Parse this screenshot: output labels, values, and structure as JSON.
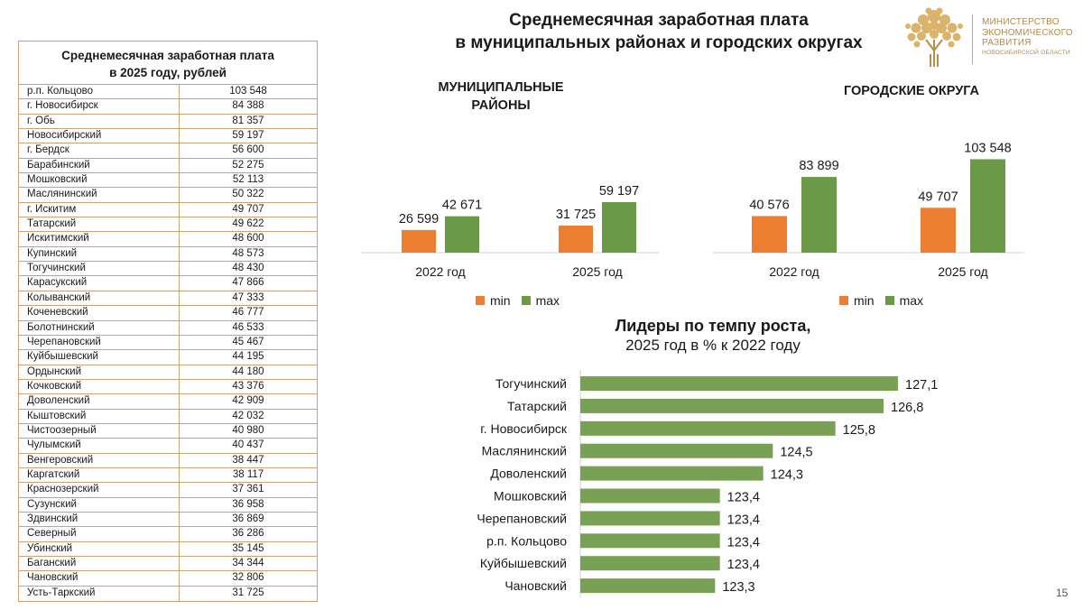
{
  "header": {
    "title_line1": "Среднемесячная заработная плата",
    "title_line2": "в муниципальных районах и городских округах"
  },
  "logo": {
    "line1": "МИНИСТЕРСТВО",
    "line2": "ЭКОНОМИЧЕСКОГО",
    "line3": "РАЗВИТИЯ",
    "line4": "НОВОСИБИРСКОЙ ОБЛАСТИ"
  },
  "table": {
    "title_line1": "Среднемесячная заработная плата",
    "title_line2": "в 2025 году, рублей",
    "rows": [
      {
        "name": "р.п. Кольцово",
        "value": "103 548"
      },
      {
        "name": "г. Новосибирск",
        "value": "84 388"
      },
      {
        "name": "г. Обь",
        "value": "81 357"
      },
      {
        "name": "Новосибирский",
        "value": "59 197"
      },
      {
        "name": "г. Бердск",
        "value": "56 600"
      },
      {
        "name": "Барабинский",
        "value": "52 275"
      },
      {
        "name": "Мошковский",
        "value": "52 113"
      },
      {
        "name": "Маслянинский",
        "value": "50 322"
      },
      {
        "name": "г. Искитим",
        "value": "49 707"
      },
      {
        "name": "Татарский",
        "value": "49 622"
      },
      {
        "name": "Искитимский",
        "value": "48 600"
      },
      {
        "name": "Купинский",
        "value": "48 573"
      },
      {
        "name": "Тогучинский",
        "value": "48 430"
      },
      {
        "name": "Карасукский",
        "value": "47 866"
      },
      {
        "name": "Колыванский",
        "value": "47 333"
      },
      {
        "name": "Коченевский",
        "value": "46 777"
      },
      {
        "name": "Болотнинский",
        "value": "46 533"
      },
      {
        "name": "Черепановский",
        "value": "45 467"
      },
      {
        "name": "Куйбышевский",
        "value": "44 195"
      },
      {
        "name": "Ордынский",
        "value": "44 180"
      },
      {
        "name": "Кочковский",
        "value": "43 376"
      },
      {
        "name": "Доволенский",
        "value": "42 909"
      },
      {
        "name": "Кыштовский",
        "value": "42 032"
      },
      {
        "name": "Чистоозерный",
        "value": "40 980"
      },
      {
        "name": "Чулымский",
        "value": "40 437"
      },
      {
        "name": "Венгеровский",
        "value": "38 447"
      },
      {
        "name": "Каргатский",
        "value": "38 117"
      },
      {
        "name": "Краснозерский",
        "value": "37 361"
      },
      {
        "name": "Сузунский",
        "value": "36 958"
      },
      {
        "name": "Здвинский",
        "value": "36 869"
      },
      {
        "name": "Северный",
        "value": "36 286"
      },
      {
        "name": "Убинский",
        "value": "35 145"
      },
      {
        "name": "Баганский",
        "value": "34 344"
      },
      {
        "name": "Чановский",
        "value": "32 806"
      },
      {
        "name": "Усть-Таркский",
        "value": "31 725"
      }
    ]
  },
  "sections": {
    "districts_line1": "МУНИЦИПАЛЬНЫЕ",
    "districts_line2": "РАЙОНЫ",
    "cities": "ГОРОДСКИЕ ОКРУГА"
  },
  "legend": {
    "min": "min",
    "max": "max"
  },
  "colors": {
    "min": "#ed7d31",
    "max": "#6a9a45",
    "growth": "#79a155",
    "border": "#c9a27a"
  },
  "growth": {
    "title_line1": "Лидеры по темпу роста,",
    "title_line2": "2025 год в % к 2022 году"
  },
  "page_number": "15",
  "chart_data": [
    {
      "type": "bar",
      "title": "МУНИЦИПАЛЬНЫЕ РАЙОНЫ",
      "categories": [
        "2022 год",
        "2025 год"
      ],
      "series": [
        {
          "name": "min",
          "values": [
            26599,
            31725
          ],
          "labels": [
            "26 599",
            "31 725"
          ]
        },
        {
          "name": "max",
          "values": [
            42671,
            59197
          ],
          "labels": [
            "42 671",
            "59 197"
          ]
        }
      ],
      "ylim": [
        0,
        110000
      ]
    },
    {
      "type": "bar",
      "title": "ГОРОДСКИЕ ОКРУГА",
      "categories": [
        "2022 год",
        "2025 год"
      ],
      "series": [
        {
          "name": "min",
          "values": [
            40576,
            49707
          ],
          "labels": [
            "40 576",
            "49 707"
          ]
        },
        {
          "name": "max",
          "values": [
            83899,
            103548
          ],
          "labels": [
            "83 899",
            "103 548"
          ]
        }
      ],
      "ylim": [
        0,
        110000
      ]
    },
    {
      "type": "bar",
      "orientation": "horizontal",
      "title": "Лидеры по темпу роста, 2025 год в % к 2022 году",
      "categories": [
        "Тогучинский",
        "Татарский",
        "г. Новосибирск",
        "Маслянинский",
        "Доволенский",
        "Мошковский",
        "Черепановский",
        "р.п. Кольцово",
        "Куйбышевский",
        "Чановский"
      ],
      "values": [
        127.1,
        126.8,
        125.8,
        124.5,
        124.3,
        123.4,
        123.4,
        123.4,
        123.4,
        123.3
      ],
      "labels": [
        "127,1",
        "126,8",
        "125,8",
        "124,5",
        "124,3",
        "123,4",
        "123,4",
        "123,4",
        "123,4",
        "123,3"
      ],
      "xlim": [
        120.5,
        127.1
      ]
    }
  ]
}
